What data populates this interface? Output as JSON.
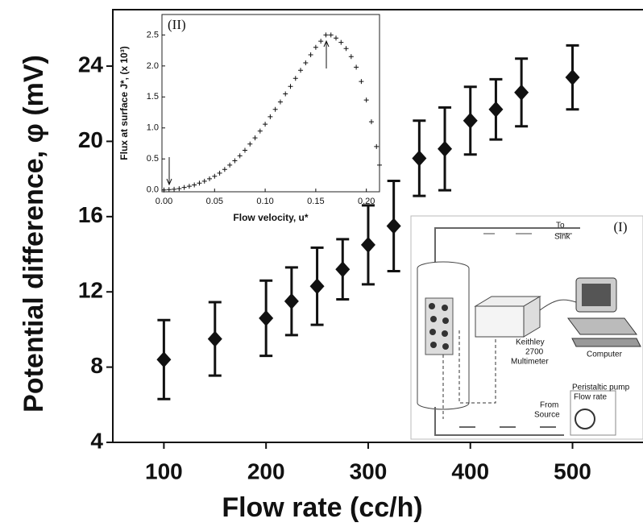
{
  "chart_data": [
    {
      "type": "scatter",
      "marker": "diamond",
      "color": "#111111",
      "x_label": "Flow rate (cc/h)",
      "y_label": "Potential difference, φ (mV)",
      "x": [
        100,
        150,
        200,
        225,
        250,
        275,
        300,
        325,
        350,
        375,
        400,
        425,
        450,
        500
      ],
      "values": [
        8.4,
        9.5,
        10.6,
        11.5,
        12.3,
        13.2,
        14.5,
        15.5,
        19.1,
        19.6,
        21.1,
        21.7,
        22.6,
        23.4
      ],
      "errors": [
        2.1,
        1.95,
        2.0,
        1.8,
        2.05,
        1.6,
        2.1,
        2.4,
        2.0,
        2.2,
        1.8,
        1.6,
        1.8,
        1.7
      ],
      "xlim": [
        50,
        569
      ],
      "ylim": [
        4,
        27
      ],
      "xticks": [
        100,
        200,
        300,
        400,
        500
      ],
      "yticks": [
        4,
        8,
        12,
        16,
        20,
        24
      ]
    },
    {
      "type": "scatter",
      "marker": "plus",
      "color": "#111111",
      "label": "(II)",
      "x_label": "Flow velocity, u*",
      "y_label": "Flux at surface J*, (x 10³)",
      "x": [
        0,
        0.005,
        0.01,
        0.015,
        0.02,
        0.025,
        0.03,
        0.035,
        0.04,
        0.045,
        0.05,
        0.055,
        0.06,
        0.065,
        0.07,
        0.075,
        0.08,
        0.085,
        0.09,
        0.095,
        0.1,
        0.105,
        0.11,
        0.115,
        0.12,
        0.125,
        0.13,
        0.135,
        0.14,
        0.145,
        0.15,
        0.155,
        0.16,
        0.165,
        0.17,
        0.175,
        0.18,
        0.185,
        0.19,
        0.195,
        0.2,
        0.205,
        0.21,
        0.213
      ],
      "values": [
        0,
        0.005,
        0.01,
        0.02,
        0.04,
        0.06,
        0.08,
        0.11,
        0.14,
        0.18,
        0.22,
        0.27,
        0.33,
        0.4,
        0.47,
        0.55,
        0.64,
        0.74,
        0.84,
        0.95,
        1.06,
        1.18,
        1.3,
        1.42,
        1.55,
        1.67,
        1.8,
        1.93,
        2.05,
        2.18,
        2.3,
        2.4,
        2.5,
        2.5,
        2.45,
        2.38,
        2.28,
        2.15,
        1.98,
        1.75,
        1.45,
        1.1,
        0.7,
        0.4
      ],
      "xlim": [
        -0.002,
        0.213
      ],
      "ylim": [
        -0.03,
        2.83
      ],
      "xticks": [
        {
          "value": 0,
          "label": "0.00"
        },
        0.05,
        {
          "value": 0.1,
          "label": "0.10"
        },
        0.15,
        {
          "value": 0.2,
          "label": "0.20"
        }
      ],
      "yticks": [
        {
          "value": 0,
          "label": "0.0"
        },
        0.5,
        {
          "value": 1,
          "label": "1.0"
        },
        1.5,
        {
          "value": 2,
          "label": "2.0"
        },
        2.5
      ]
    }
  ],
  "schematic": {
    "label": "(I)",
    "texts": [
      "To",
      "Sink",
      "Keithley",
      "2700",
      "Multimeter",
      "Computer",
      "Peristaltic pump",
      "Flow rate",
      "From",
      "Source"
    ]
  }
}
